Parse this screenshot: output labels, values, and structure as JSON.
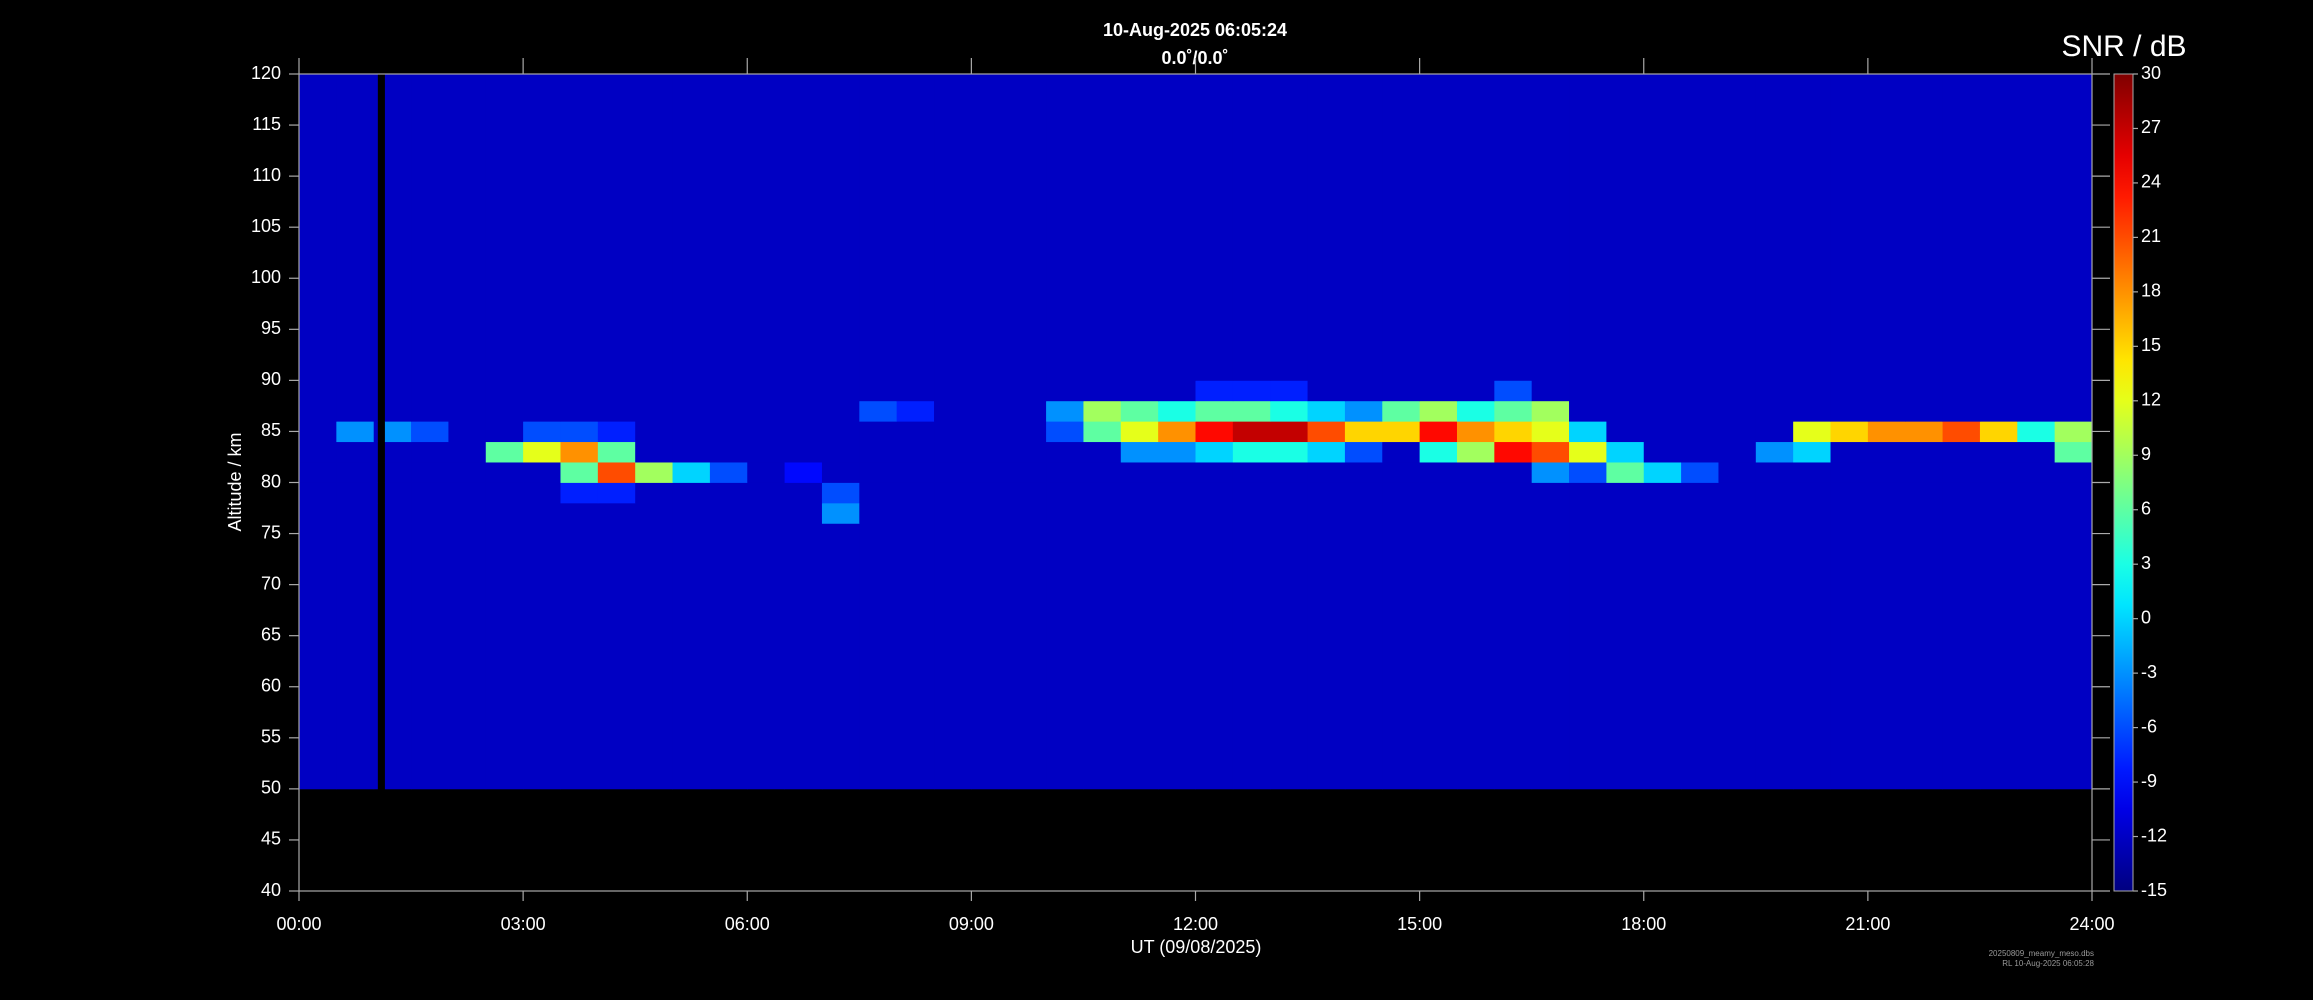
{
  "chart_data": {
    "type": "heatmap",
    "title": "10-Aug-2025 06:05:24",
    "subtitle": "0.0˚/0.0˚",
    "xlabel": "UT (09/08/2025)",
    "ylabel": "Altitude / km",
    "colorbar_label": "SNR / dB",
    "footnote": [
      "20250809_meamy_meso.dbs",
      "RL 10-Aug-2025 06:05:28"
    ],
    "xlim": [
      0,
      24
    ],
    "xticks": [
      {
        "value": 0,
        "label": "00:00"
      },
      {
        "value": 3,
        "label": "03:00"
      },
      {
        "value": 6,
        "label": "06:00"
      },
      {
        "value": 9,
        "label": "09:00"
      },
      {
        "value": 12,
        "label": "12:00"
      },
      {
        "value": 15,
        "label": "15:00"
      },
      {
        "value": 18,
        "label": "18:00"
      },
      {
        "value": 21,
        "label": "21:00"
      },
      {
        "value": 24,
        "label": "24:00"
      }
    ],
    "ylim": [
      40,
      120
    ],
    "yticks": [
      40,
      45,
      50,
      55,
      60,
      65,
      70,
      75,
      80,
      85,
      90,
      95,
      100,
      105,
      110,
      115,
      120
    ],
    "clim": [
      -15,
      30
    ],
    "cticks": [
      -15,
      -12,
      -9,
      -6,
      -3,
      0,
      3,
      6,
      9,
      12,
      15,
      18,
      21,
      24,
      27,
      30
    ],
    "colormap": "jet",
    "x_bins": [
      0,
      0.5,
      1,
      1.05,
      1.15,
      1.5,
      2,
      2.5,
      3,
      3.5,
      4,
      4.5,
      5,
      5.5,
      6,
      6.5,
      7,
      7.5,
      8,
      8.5,
      9,
      9.5,
      10,
      10.5,
      11,
      11.5,
      12,
      12.5,
      13,
      13.5,
      14,
      14.5,
      15,
      15.5,
      16,
      16.5,
      17,
      17.5,
      18,
      18.5,
      19,
      19.5,
      20,
      20.5,
      21,
      21.5,
      22,
      22.5,
      23,
      23.5,
      24
    ],
    "y_bins": [
      50,
      76,
      78,
      80,
      82,
      84,
      86,
      88,
      90,
      120
    ],
    "values": [
      [
        -12,
        -12,
        -12,
        null,
        -12,
        -12,
        -12,
        -12,
        -12,
        -12,
        -12,
        -12,
        -12,
        -12,
        -12,
        -12,
        -12,
        -12,
        -12,
        -12,
        -12,
        -12,
        -12,
        -12,
        -12,
        -12,
        -12,
        -12,
        -12,
        -12,
        -12,
        -12,
        -12,
        -12,
        -12,
        -12,
        -12,
        -12,
        -12,
        -12,
        -12,
        -12,
        -12,
        -12,
        -12,
        -12,
        -12,
        -12,
        -12,
        -12
      ],
      [
        -12,
        -12,
        -12,
        null,
        -12,
        -12,
        -12,
        -12,
        -12,
        -12,
        -12,
        -12,
        -12,
        -12,
        -12,
        -12,
        -3,
        -12,
        -12,
        -12,
        -12,
        -12,
        -12,
        -12,
        -12,
        -12,
        -12,
        -12,
        -12,
        -12,
        -12,
        -12,
        -12,
        -12,
        -12,
        -12,
        -12,
        -12,
        -12,
        -12,
        -12,
        -12,
        -12,
        -12,
        -12,
        -12,
        -12,
        -12,
        -12,
        -12
      ],
      [
        -12,
        -12,
        -12,
        null,
        -12,
        -12,
        -12,
        -12,
        -12,
        -8,
        -8,
        -12,
        -12,
        -12,
        -12,
        -12,
        -6,
        -12,
        -12,
        -12,
        -12,
        -12,
        -12,
        -12,
        -12,
        -12,
        -12,
        -12,
        -12,
        -12,
        -12,
        -12,
        -12,
        -12,
        -12,
        -12,
        -12,
        -12,
        -12,
        -12,
        -12,
        -12,
        -12,
        -12,
        -12,
        -12,
        -12,
        -12,
        -12,
        -12
      ],
      [
        -12,
        -12,
        -12,
        null,
        -12,
        -12,
        -12,
        -12,
        -12,
        6,
        21,
        9,
        0,
        -6,
        -12,
        -9,
        -12,
        -12,
        -12,
        -12,
        -12,
        -12,
        -12,
        -12,
        -12,
        -12,
        -12,
        -12,
        -12,
        -12,
        -12,
        -12,
        -12,
        -12,
        -12,
        -3,
        -6,
        6,
        0,
        -6,
        -12,
        -12,
        -12,
        -12,
        -12,
        -12,
        -12,
        -12,
        -12,
        -12
      ],
      [
        -12,
        -12,
        -12,
        null,
        -12,
        -12,
        -12,
        6,
        12,
        18,
        6,
        -12,
        -12,
        -12,
        -12,
        -12,
        -12,
        -12,
        -12,
        -12,
        -12,
        -12,
        -12,
        -12,
        -3,
        -3,
        0,
        3,
        3,
        0,
        -6,
        -12,
        3,
        9,
        24,
        21,
        12,
        0,
        -12,
        -12,
        -12,
        -3,
        0,
        -12,
        -12,
        -12,
        -12,
        -12,
        -12,
        6
      ],
      [
        -12,
        -3,
        -12,
        null,
        -3,
        -6,
        -12,
        -12,
        -6,
        -6,
        -8,
        -12,
        -12,
        -12,
        -12,
        -12,
        -12,
        -12,
        -12,
        -12,
        -12,
        -12,
        -6,
        6,
        12,
        18,
        24,
        27,
        27,
        21,
        15,
        15,
        24,
        18,
        15,
        12,
        0,
        -12,
        -12,
        -12,
        -12,
        -12,
        12,
        15,
        18,
        18,
        21,
        15,
        3,
        9
      ],
      [
        -12,
        -12,
        -12,
        null,
        -12,
        -12,
        -12,
        -12,
        -12,
        -12,
        -12,
        -12,
        -12,
        -12,
        -12,
        -12,
        -12,
        -6,
        -8,
        -12,
        -12,
        -12,
        -3,
        9,
        6,
        3,
        6,
        6,
        3,
        0,
        -3,
        6,
        9,
        3,
        6,
        9,
        -12,
        -12,
        -12,
        -12,
        -12,
        -12,
        -12,
        -12,
        -12,
        -12,
        -12,
        -12,
        -12,
        -12
      ],
      [
        -12,
        -12,
        -12,
        null,
        -12,
        -12,
        -12,
        -12,
        -12,
        -12,
        -12,
        -12,
        -12,
        -12,
        -12,
        -12,
        -12,
        -12,
        -12,
        -12,
        -12,
        -12,
        -12,
        -12,
        -12,
        -12,
        -8,
        -8,
        -8,
        -12,
        -12,
        -12,
        -12,
        -12,
        -6,
        -12,
        -12,
        -12,
        -12,
        -12,
        -12,
        -12,
        -12,
        -12,
        -12,
        -12,
        -12,
        -12,
        -12,
        -12
      ],
      [
        -12,
        -12,
        -12,
        null,
        -12,
        -12,
        -12,
        -12,
        -12,
        -12,
        -12,
        -12,
        -12,
        -12,
        -12,
        -12,
        -12,
        -12,
        -12,
        -12,
        -12,
        -12,
        -12,
        -12,
        -12,
        -12,
        -12,
        -12,
        -12,
        -12,
        -12,
        -12,
        -12,
        -12,
        -12,
        -12,
        -12,
        -12,
        -12,
        -12,
        -12,
        -12,
        -12,
        -12,
        -12,
        -12,
        -12,
        -12,
        -12,
        -12
      ]
    ]
  }
}
